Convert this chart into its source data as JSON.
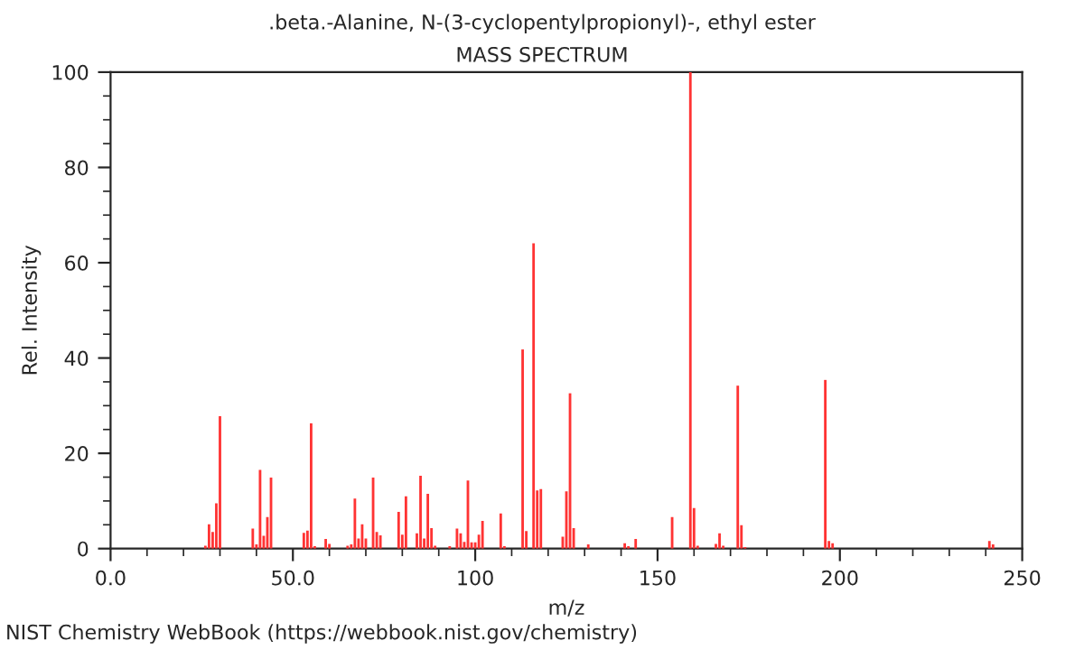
{
  "chart_data": {
    "type": "bar",
    "title": ".beta.-Alanine, N-(3-cyclopentylpropionyl)-, ethyl ester",
    "subtitle": "MASS SPECTRUM",
    "xlabel": "m/z",
    "ylabel": "Rel. Intensity",
    "annotations": [
      "NIST Chemistry WebBook (https://webbook.nist.gov/chemistry)"
    ],
    "x": [
      26,
      27,
      28,
      29,
      30,
      39,
      40,
      41,
      42,
      43,
      44,
      53,
      54,
      55,
      56,
      59,
      60,
      65,
      66,
      67,
      68,
      69,
      70,
      72,
      73,
      74,
      79,
      80,
      81,
      84,
      85,
      86,
      87,
      88,
      89,
      93,
      95,
      96,
      97,
      98,
      99,
      100,
      101,
      102,
      107,
      108,
      113,
      114,
      116,
      117,
      118,
      124,
      125,
      126,
      127,
      131,
      141,
      142,
      144,
      154,
      159,
      160,
      161,
      166,
      167,
      168,
      172,
      173,
      174,
      196,
      197,
      198,
      241,
      242
    ],
    "values": [
      0.6,
      5.1,
      3.5,
      9.5,
      27.8,
      4.2,
      0.9,
      16.5,
      2.7,
      6.6,
      14.9,
      3.3,
      3.8,
      26.3,
      0.5,
      2.0,
      1.0,
      0.6,
      0.9,
      10.5,
      2.1,
      5.1,
      2.1,
      14.9,
      3.5,
      2.8,
      7.7,
      2.9,
      11.0,
      3.2,
      15.3,
      2.1,
      11.5,
      4.3,
      0.6,
      0.5,
      4.2,
      3.2,
      1.4,
      14.3,
      1.3,
      1.3,
      2.9,
      5.8,
      7.4,
      0.5,
      41.8,
      3.7,
      64.1,
      12.2,
      12.5,
      2.5,
      12.0,
      32.6,
      4.3,
      0.9,
      1.1,
      0.5,
      2.0,
      6.6,
      100,
      8.5,
      0.6,
      1.0,
      3.2,
      0.6,
      34.2,
      4.9,
      0.3,
      35.4,
      1.6,
      1.1,
      1.6,
      0.9
    ],
    "color": "#ff3333",
    "xlim": [
      0,
      250
    ],
    "xticks": [
      {
        "value": 0,
        "label": "0.0"
      },
      {
        "value": 10,
        "label": null
      },
      {
        "value": 20,
        "label": null
      },
      {
        "value": 30,
        "label": null
      },
      {
        "value": 40,
        "label": null
      },
      {
        "value": 50,
        "label": "50.0"
      },
      {
        "value": 60,
        "label": null
      },
      {
        "value": 70,
        "label": null
      },
      {
        "value": 80,
        "label": null
      },
      {
        "value": 90,
        "label": null
      },
      {
        "value": 100,
        "label": "100"
      },
      {
        "value": 110,
        "label": null
      },
      {
        "value": 120,
        "label": null
      },
      {
        "value": 130,
        "label": null
      },
      {
        "value": 140,
        "label": null
      },
      {
        "value": 150,
        "label": "150"
      },
      {
        "value": 160,
        "label": null
      },
      {
        "value": 170,
        "label": null
      },
      {
        "value": 180,
        "label": null
      },
      {
        "value": 190,
        "label": null
      },
      {
        "value": 200,
        "label": "200"
      },
      {
        "value": 210,
        "label": null
      },
      {
        "value": 220,
        "label": null
      },
      {
        "value": 230,
        "label": null
      },
      {
        "value": 240,
        "label": null
      },
      {
        "value": 250,
        "label": "250"
      }
    ],
    "ylim": [
      0,
      100
    ],
    "yticks": [
      0,
      {
        "value": 5,
        "label": null
      },
      {
        "value": 10,
        "label": null
      },
      {
        "value": 15,
        "label": null
      },
      20,
      {
        "value": 25,
        "label": null
      },
      {
        "value": 30,
        "label": null
      },
      {
        "value": 35,
        "label": null
      },
      40,
      {
        "value": 45,
        "label": null
      },
      {
        "value": 50,
        "label": null
      },
      {
        "value": 55,
        "label": null
      },
      60,
      {
        "value": 65,
        "label": null
      },
      {
        "value": 70,
        "label": null
      },
      {
        "value": 75,
        "label": null
      },
      80,
      {
        "value": 85,
        "label": null
      },
      {
        "value": 90,
        "label": null
      },
      {
        "value": 95,
        "label": null
      },
      100
    ],
    "grid": false,
    "legend": false
  }
}
